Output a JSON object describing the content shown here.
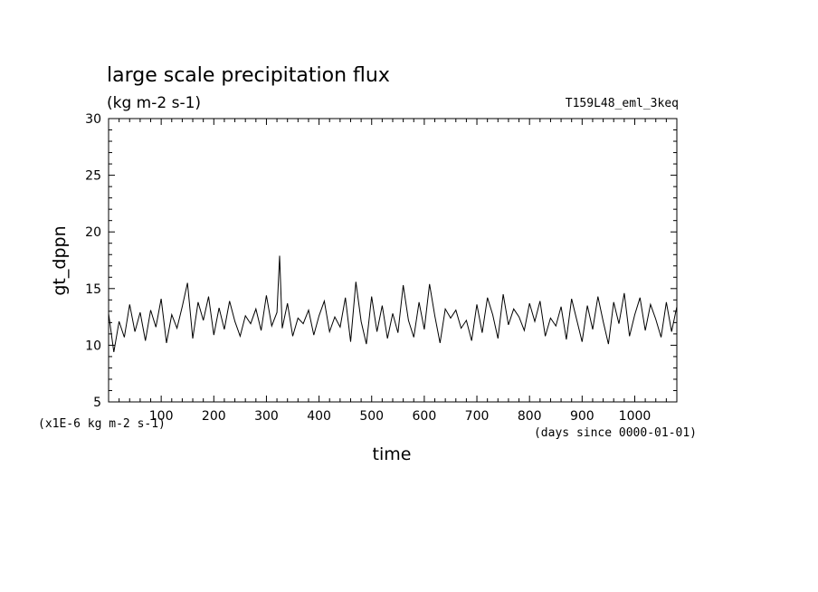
{
  "chart_data": {
    "type": "line",
    "title": "large scale precipitation flux",
    "units": "(kg m-2 s-1)",
    "experiment": "T159L48_eml_3keq",
    "ylabel": "gt_dppn",
    "xlabel": "time",
    "y_scale_note": "(x1E-6 kg m-2 s-1)",
    "x_unit_note": "(days since 0000-01-01)",
    "xlim": [
      0,
      1080
    ],
    "ylim": [
      5,
      30
    ],
    "x_ticks": [
      "100",
      "200",
      "300",
      "400",
      "500",
      "600",
      "700",
      "800",
      "900",
      "1000"
    ],
    "y_ticks": [
      "5",
      "10",
      "15",
      "20",
      "25",
      "30"
    ],
    "grid": false,
    "series": [
      {
        "color": "#000000",
        "x": [
          0,
          10,
          20,
          30,
          40,
          50,
          60,
          70,
          80,
          90,
          100,
          110,
          120,
          130,
          140,
          150,
          160,
          170,
          180,
          190,
          200,
          210,
          220,
          230,
          240,
          250,
          260,
          270,
          280,
          290,
          300,
          310,
          320,
          325,
          330,
          340,
          350,
          360,
          370,
          380,
          390,
          400,
          410,
          420,
          430,
          440,
          450,
          460,
          470,
          480,
          490,
          500,
          510,
          520,
          530,
          540,
          550,
          560,
          570,
          580,
          590,
          600,
          610,
          620,
          630,
          640,
          650,
          660,
          670,
          680,
          690,
          700,
          710,
          720,
          730,
          740,
          750,
          760,
          770,
          780,
          790,
          800,
          810,
          820,
          830,
          840,
          850,
          860,
          870,
          880,
          890,
          900,
          910,
          920,
          930,
          940,
          950,
          960,
          970,
          980,
          990,
          1000,
          1010,
          1020,
          1030,
          1040,
          1050,
          1060,
          1070,
          1080
        ],
        "y": [
          12.8,
          9.4,
          12.1,
          10.7,
          13.6,
          11.2,
          12.9,
          10.4,
          13.1,
          11.6,
          14.1,
          10.2,
          12.7,
          11.5,
          13.4,
          15.5,
          10.6,
          13.8,
          12.2,
          14.3,
          10.9,
          13.3,
          11.4,
          13.9,
          12.1,
          10.8,
          12.6,
          11.9,
          13.2,
          11.3,
          14.4,
          11.7,
          12.9,
          17.9,
          11.5,
          13.7,
          10.8,
          12.4,
          11.9,
          13.1,
          10.9,
          12.6,
          13.9,
          11.2,
          12.5,
          11.6,
          14.2,
          10.3,
          15.6,
          12.1,
          10.1,
          14.3,
          11.2,
          13.5,
          10.6,
          12.8,
          11.1,
          15.3,
          12.2,
          10.7,
          13.8,
          11.4,
          15.4,
          12.6,
          10.2,
          13.2,
          12.4,
          13.1,
          11.5,
          12.2,
          10.4,
          13.6,
          11.1,
          14.2,
          12.7,
          10.6,
          14.5,
          11.8,
          13.2,
          12.5,
          11.3,
          13.7,
          12.1,
          13.9,
          10.8,
          12.4,
          11.7,
          13.4,
          10.5,
          14.1,
          12.2,
          10.3,
          13.5,
          11.4,
          14.3,
          12.1,
          10.1,
          13.8,
          11.9,
          14.6,
          10.8,
          12.7,
          14.2,
          11.3,
          13.6,
          12.3,
          10.7,
          13.8,
          11.2,
          13.4
        ]
      }
    ]
  }
}
